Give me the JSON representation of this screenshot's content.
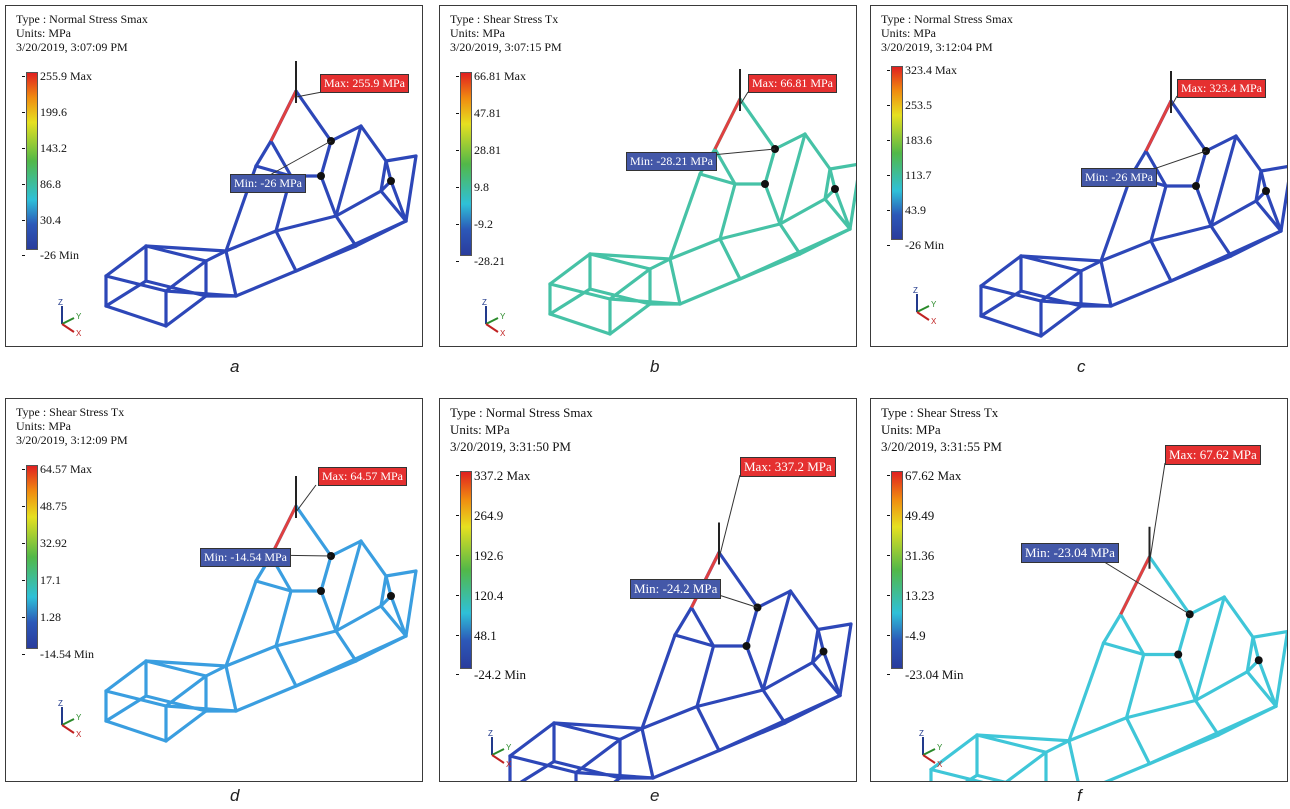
{
  "panels": [
    {
      "id": "a",
      "type_line": "Type : Normal Stress Smax",
      "units_line": "Units: MPa",
      "time_line": "3/20/2019, 3:07:09 PM",
      "ticks": [
        "255.9 Max",
        "199.6",
        "143.2",
        "86.8",
        "30.4",
        "-26 Min"
      ],
      "max_label": "Max: 255.9 MPa",
      "min_label": "Min: -26 MPa",
      "frame_color": "#2d47b8",
      "caption": "a"
    },
    {
      "id": "b",
      "type_line": "Type : Shear Stress Tx",
      "units_line": "Units: MPa",
      "time_line": "3/20/2019, 3:07:15 PM",
      "ticks": [
        "66.81 Max",
        "47.81",
        "28.81",
        "9.8",
        "-9.2",
        "-28.21"
      ],
      "max_label": "Max: 66.81 MPa",
      "min_label": "Min: -28.21 MPa",
      "frame_color": "#46c2a6",
      "caption": "b"
    },
    {
      "id": "c",
      "type_line": "Type : Normal Stress Smax",
      "units_line": "Units: MPa",
      "time_line": "3/20/2019, 3:12:04 PM",
      "ticks": [
        "323.4 Max",
        "253.5",
        "183.6",
        "113.7",
        "43.9",
        "-26 Min"
      ],
      "max_label": "Max: 323.4 MPa",
      "min_label": "Min: -26 MPa",
      "frame_color": "#2d47b8",
      "caption": "c"
    },
    {
      "id": "d",
      "type_line": "Type : Shear Stress Tx",
      "units_line": "Units: MPa",
      "time_line": "3/20/2019, 3:12:09 PM",
      "ticks": [
        "64.57 Max",
        "48.75",
        "32.92",
        "17.1",
        "1.28",
        "-14.54 Min"
      ],
      "max_label": "Max: 64.57 MPa",
      "min_label": "Min: -14.54 MPa",
      "frame_color": "#3a9ee0",
      "caption": "d"
    },
    {
      "id": "e",
      "type_line": "Type : Normal Stress Smax",
      "units_line": "Units: MPa",
      "time_line": "3/20/2019, 3:31:50 PM",
      "ticks": [
        "337.2 Max",
        "264.9",
        "192.6",
        "120.4",
        "48.1",
        "-24.2 Min"
      ],
      "max_label": "Max: 337.2 MPa",
      "min_label": "Min: -24.2 MPa",
      "frame_color": "#2d47b8",
      "caption": "e"
    },
    {
      "id": "f",
      "type_line": "Type : Shear Stress Tx",
      "units_line": "Units: MPa",
      "time_line": "3/20/2019, 3:31:55 PM",
      "ticks": [
        "67.62 Max",
        "49.49",
        "31.36",
        "13.23",
        "-4.9",
        "-23.04 Min"
      ],
      "max_label": "Max: 67.62 MPa",
      "min_label": "Min: -23.04 MPa",
      "frame_color": "#3fc6d8",
      "caption": "f"
    }
  ],
  "axis_labels": {
    "z": "Z",
    "y": "Y",
    "x": "X"
  },
  "colors": {
    "max_callout": "#e53030",
    "min_callout": "#4458a8",
    "border": "#3a3a3a"
  }
}
